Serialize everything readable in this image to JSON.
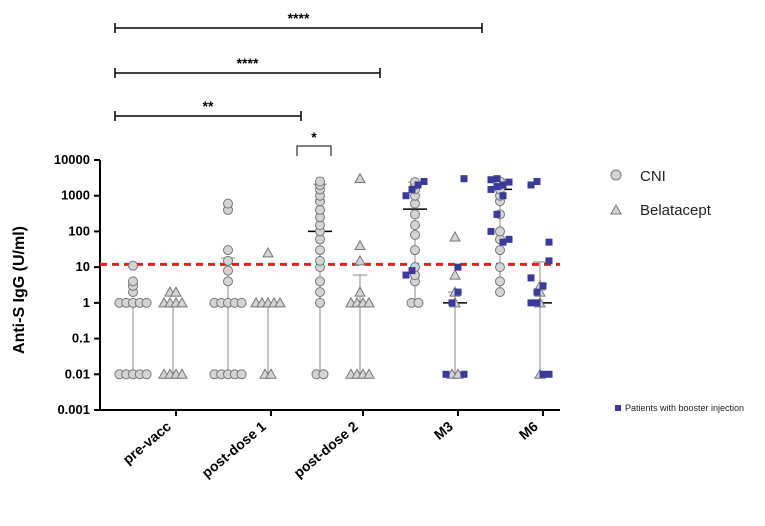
{
  "chart_data": {
    "type": "scatter",
    "scale": "log10",
    "ylabel": "Anti-S IgG (U/ml)",
    "ylim": [
      0.001,
      10000
    ],
    "yticks": [
      "0.001",
      "0.01",
      "0.1",
      "1",
      "10",
      "100",
      "1000",
      "10000"
    ],
    "categories": [
      "pre-vacc",
      "post-dose 1",
      "post-dose 2",
      "M3",
      "M6"
    ],
    "threshold": {
      "value": 12,
      "color": "#e02020",
      "style": "dashed"
    },
    "series": [
      {
        "name": "CNI",
        "marker": "circle",
        "color": "#d4d4d4",
        "median": [
          0.01,
          1,
          100,
          420,
          1500
        ],
        "upper": [
          1,
          18,
          2100,
          2400,
          2900
        ],
        "lower": [
          0.01,
          0.01,
          0.01,
          1,
          2
        ],
        "points": [
          [
            0.01,
            0.01,
            0.01,
            0.01,
            0.01,
            1,
            1,
            1,
            1,
            1,
            2,
            3,
            4,
            11
          ],
          [
            0.01,
            0.01,
            0.01,
            0.01,
            0.01,
            1,
            1,
            1,
            1,
            1,
            4,
            8,
            15,
            30,
            400,
            600
          ],
          [
            0.01,
            0.01,
            1,
            2,
            4,
            10,
            15,
            30,
            60,
            100,
            150,
            250,
            400,
            700,
            1000,
            1500,
            2000,
            2500
          ],
          [
            1,
            1,
            4,
            6,
            10,
            30,
            80,
            150,
            300,
            600,
            1000,
            1500,
            2000,
            2400
          ],
          [
            2,
            4,
            10,
            30,
            60,
            100,
            300,
            700,
            1000,
            1500,
            2000,
            2500
          ]
        ]
      },
      {
        "name": "Belatacept",
        "marker": "triangle",
        "color": "#d4d4d4",
        "median": [
          1,
          1,
          1,
          1,
          1
        ],
        "upper": [
          1,
          1,
          6,
          2,
          14
        ],
        "lower": [
          0.01,
          0.01,
          0.01,
          0.01,
          0.01
        ],
        "points": [
          [
            0.01,
            0.01,
            0.01,
            0.01,
            1,
            1,
            1,
            1,
            2,
            2
          ],
          [
            0.01,
            0.01,
            1,
            1,
            1,
            1,
            1,
            25
          ],
          [
            0.01,
            0.01,
            0.01,
            0.01,
            1,
            1,
            1,
            1,
            2,
            15,
            40,
            3000
          ],
          [
            0.01,
            0.01,
            1,
            2,
            6,
            70
          ],
          [
            0.01,
            1,
            2,
            3
          ]
        ]
      },
      {
        "name": "Patients with booster injection",
        "marker": "square",
        "color": "#3b3a98",
        "points": [
          [],
          [],
          [],
          [
            1000,
            1500,
            2000,
            2500,
            6,
            8,
            10,
            0.01,
            0.01,
            1,
            2,
            3000
          ],
          [
            1500,
            1800,
            2000,
            2400,
            2800,
            3000,
            50,
            60,
            100,
            300,
            1000,
            15,
            5,
            2,
            0.01,
            0.01,
            1,
            1,
            3,
            50,
            2000,
            2500
          ]
        ]
      }
    ],
    "significance": [
      {
        "from": "pre-vacc",
        "to": "M6",
        "label": "****"
      },
      {
        "from": "pre-vacc",
        "to": "M3",
        "label": "****"
      },
      {
        "from": "pre-vacc",
        "to": "post-dose 2",
        "label": "**"
      },
      {
        "from": "post-dose 2 CNI",
        "to": "post-dose 2 Belatacept",
        "label": "*"
      }
    ],
    "legend": [
      "CNI",
      "Belatacept"
    ],
    "legend_small": "Patients with booster injection"
  }
}
